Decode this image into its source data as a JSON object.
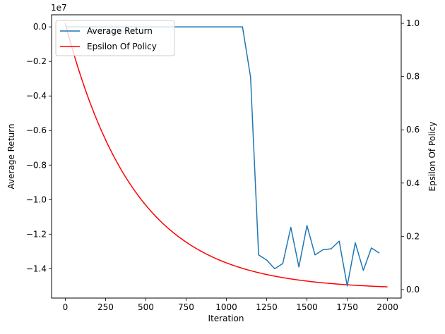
{
  "chart_data": {
    "type": "line",
    "title": "",
    "xlabel": "Iteration",
    "ylabel_left": "Average Return",
    "ylabel_right": "Epsilon Of Policy",
    "left_axis_offset_text": "1e7",
    "xlim": [
      -85,
      2085
    ],
    "ylim_left": [
      -1.57,
      0.07
    ],
    "ylim_right": [
      -0.032,
      1.032
    ],
    "x_ticks": [
      0,
      250,
      500,
      750,
      1000,
      1250,
      1500,
      1750,
      2000
    ],
    "x_tick_labels": [
      "0",
      "250",
      "500",
      "750",
      "1000",
      "1250",
      "1500",
      "1750",
      "2000"
    ],
    "y_left_ticks": [
      0.0,
      -0.2,
      -0.4,
      -0.6,
      -0.8,
      -1.0,
      -1.2,
      -1.4
    ],
    "y_left_tick_labels": [
      "0.0",
      "−0.2",
      "−0.4",
      "−0.6",
      "−0.8",
      "−1.0",
      "−1.2",
      "−1.4"
    ],
    "y_right_ticks": [
      0.0,
      0.2,
      0.4,
      0.6,
      0.8,
      1.0
    ],
    "y_right_tick_labels": [
      "0.0",
      "0.2",
      "0.4",
      "0.6",
      "0.8",
      "1.0"
    ],
    "legend_position": "top-left",
    "series": [
      {
        "name": "Average Return",
        "axis": "left",
        "color": "#1f77b4",
        "x": [
          0,
          50,
          100,
          150,
          200,
          250,
          300,
          350,
          400,
          450,
          500,
          550,
          600,
          650,
          700,
          750,
          800,
          850,
          900,
          950,
          1000,
          1050,
          1100,
          1150,
          1200,
          1250,
          1300,
          1350,
          1400,
          1450,
          1500,
          1550,
          1600,
          1650,
          1700,
          1750,
          1800,
          1850,
          1900,
          1950
        ],
        "y": [
          0,
          0,
          0,
          0,
          0,
          0,
          0,
          0,
          0,
          0,
          0,
          0,
          0,
          0,
          0,
          0,
          0,
          0,
          0,
          0,
          0,
          0,
          0,
          -0.29,
          -1.32,
          -1.35,
          -1.4,
          -1.37,
          -1.16,
          -1.39,
          -1.15,
          -1.32,
          -1.29,
          -1.285,
          -1.24,
          -1.5,
          -1.25,
          -1.41,
          -1.28,
          -1.31
        ]
      },
      {
        "name": "Epsilon Of Policy",
        "axis": "right",
        "color": "#ff0000",
        "decay_rate": 0.0023
      }
    ]
  }
}
